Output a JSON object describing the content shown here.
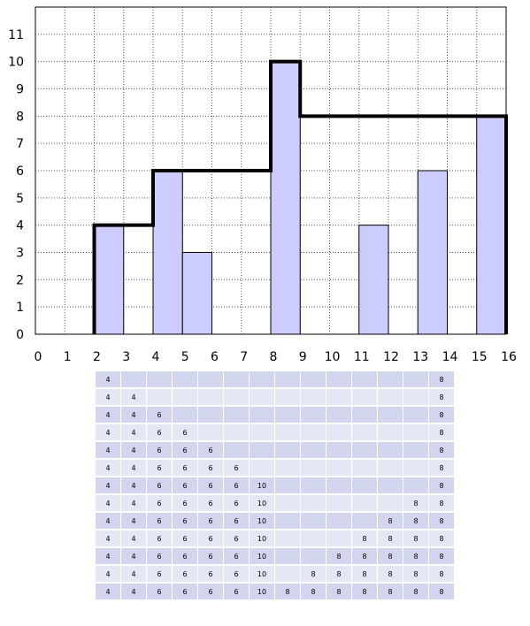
{
  "colors": {
    "bar_fill": "#ccccff",
    "bar_stroke": "#000000",
    "skyline_stroke": "#000000",
    "table_row_dark": "#d2d5ee",
    "table_row_light": "#e6e7f4"
  },
  "chart_data": {
    "type": "bar",
    "title": "",
    "xlabel": "",
    "ylabel": "",
    "xlim": [
      0,
      16
    ],
    "ylim": [
      0,
      12
    ],
    "x_ticks": [
      "0",
      "1",
      "2",
      "3",
      "4",
      "5",
      "6",
      "7",
      "8",
      "9",
      "10",
      "11",
      "12",
      "13",
      "14",
      "15",
      "16"
    ],
    "y_ticks": [
      "0",
      "1",
      "2",
      "3",
      "4",
      "5",
      "6",
      "7",
      "8",
      "9",
      "10",
      "11"
    ],
    "grid": true,
    "bars": [
      {
        "x0": 2,
        "x1": 3,
        "height": 4
      },
      {
        "x0": 4,
        "x1": 5,
        "height": 6
      },
      {
        "x0": 5,
        "x1": 6,
        "height": 3
      },
      {
        "x0": 8,
        "x1": 9,
        "height": 10
      },
      {
        "x0": 11,
        "x1": 12,
        "height": 4
      },
      {
        "x0": 13,
        "x1": 14,
        "height": 6
      },
      {
        "x0": 15,
        "x1": 16,
        "height": 8
      }
    ],
    "skyline": [
      [
        2,
        0
      ],
      [
        2,
        4
      ],
      [
        4,
        4
      ],
      [
        4,
        6
      ],
      [
        8,
        6
      ],
      [
        8,
        10
      ],
      [
        9,
        10
      ],
      [
        9,
        8
      ],
      [
        16,
        8
      ],
      [
        16,
        0
      ]
    ]
  },
  "table": {
    "rows": [
      [
        "4",
        "",
        "",
        "",
        "",
        "",
        "",
        "",
        "",
        "",
        "",
        "",
        "",
        "8"
      ],
      [
        "4",
        "4",
        "",
        "",
        "",
        "",
        "",
        "",
        "",
        "",
        "",
        "",
        "",
        "8"
      ],
      [
        "4",
        "4",
        "6",
        "",
        "",
        "",
        "",
        "",
        "",
        "",
        "",
        "",
        "",
        "8"
      ],
      [
        "4",
        "4",
        "6",
        "6",
        "",
        "",
        "",
        "",
        "",
        "",
        "",
        "",
        "",
        "8"
      ],
      [
        "4",
        "4",
        "6",
        "6",
        "6",
        "",
        "",
        "",
        "",
        "",
        "",
        "",
        "",
        "8"
      ],
      [
        "4",
        "4",
        "6",
        "6",
        "6",
        "6",
        "",
        "",
        "",
        "",
        "",
        "",
        "",
        "8"
      ],
      [
        "4",
        "4",
        "6",
        "6",
        "6",
        "6",
        "10",
        "",
        "",
        "",
        "",
        "",
        "",
        "8"
      ],
      [
        "4",
        "4",
        "6",
        "6",
        "6",
        "6",
        "10",
        "",
        "",
        "",
        "",
        "",
        "8",
        "8"
      ],
      [
        "4",
        "4",
        "6",
        "6",
        "6",
        "6",
        "10",
        "",
        "",
        "",
        "",
        "8",
        "8",
        "8"
      ],
      [
        "4",
        "4",
        "6",
        "6",
        "6",
        "6",
        "10",
        "",
        "",
        "",
        "8",
        "8",
        "8",
        "8"
      ],
      [
        "4",
        "4",
        "6",
        "6",
        "6",
        "6",
        "10",
        "",
        "",
        "8",
        "8",
        "8",
        "8",
        "8"
      ],
      [
        "4",
        "4",
        "6",
        "6",
        "6",
        "6",
        "10",
        "",
        "8",
        "8",
        "8",
        "8",
        "8",
        "8"
      ],
      [
        "4",
        "4",
        "6",
        "6",
        "6",
        "6",
        "10",
        "8",
        "8",
        "8",
        "8",
        "8",
        "8",
        "8"
      ]
    ]
  }
}
